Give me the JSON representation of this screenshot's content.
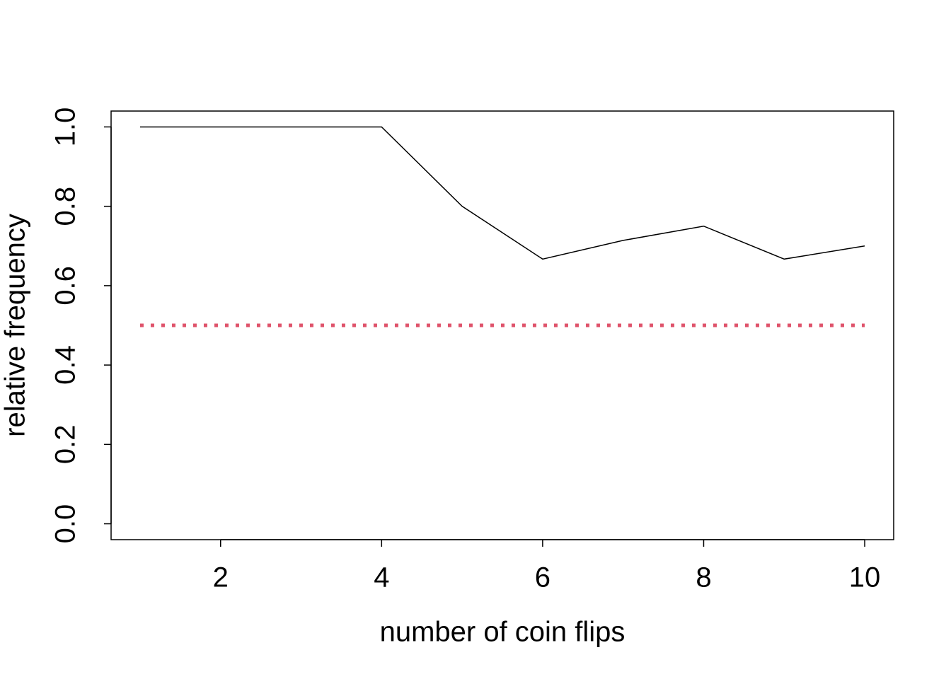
{
  "chart_data": {
    "type": "line",
    "x_label": "number of coin flips",
    "y_label": "relative frequency",
    "x": [
      1,
      2,
      3,
      4,
      5,
      6,
      7,
      8,
      9,
      10
    ],
    "series": [
      {
        "color": "#000000",
        "style": "solid",
        "values": [
          1,
          1,
          1,
          1,
          0.8,
          0.667,
          0.714,
          0.75,
          0.667,
          0.7
        ]
      },
      {
        "color": "#DF536B",
        "style": "dotted",
        "values": [
          0.5,
          0.5,
          0.5,
          0.5,
          0.5,
          0.5,
          0.5,
          0.5,
          0.5,
          0.5
        ]
      }
    ],
    "xlim": [
      0.64,
      10.36
    ],
    "ylim": [
      -0.04,
      1.04
    ],
    "xticks": [
      2,
      4,
      6,
      8,
      10
    ],
    "yticks": [
      {
        "value": 0,
        "label": "0.0"
      },
      0.2,
      0.4,
      0.6,
      0.8,
      {
        "value": 1,
        "label": "1.0"
      }
    ]
  }
}
